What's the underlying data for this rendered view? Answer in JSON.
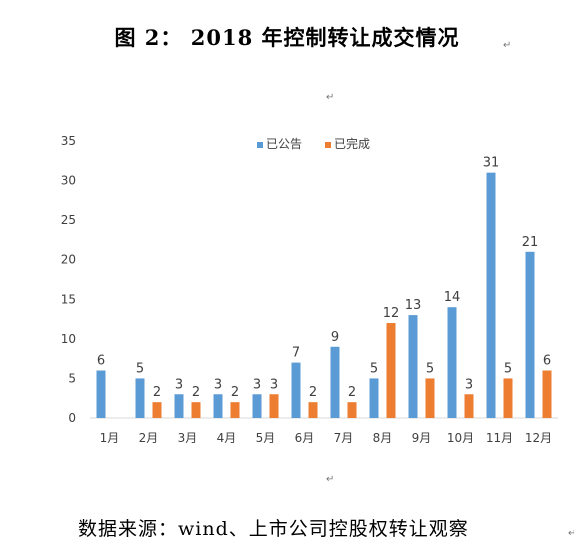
{
  "figure": {
    "title": "图 2：  2018 年控制转让成交情况",
    "source": "数据来源：wind、上市公司控股权转让观察"
  },
  "chart_data": {
    "type": "bar",
    "categories": [
      "1月",
      "2月",
      "3月",
      "4月",
      "5月",
      "6月",
      "7月",
      "8月",
      "9月",
      "10月",
      "11月",
      "12月"
    ],
    "series": [
      {
        "name": "已公告",
        "color": "#5B9BD5",
        "values": [
          6,
          5,
          3,
          3,
          3,
          7,
          9,
          5,
          13,
          14,
          31,
          21
        ]
      },
      {
        "name": "已完成",
        "color": "#ED7D31",
        "values": [
          null,
          2,
          2,
          2,
          3,
          2,
          2,
          12,
          5,
          3,
          5,
          6
        ]
      }
    ],
    "ylim": [
      0,
      35
    ],
    "yticks": [
      0,
      5,
      10,
      15,
      20,
      25,
      30,
      35
    ],
    "grid": false,
    "legend_position": "top-center"
  }
}
